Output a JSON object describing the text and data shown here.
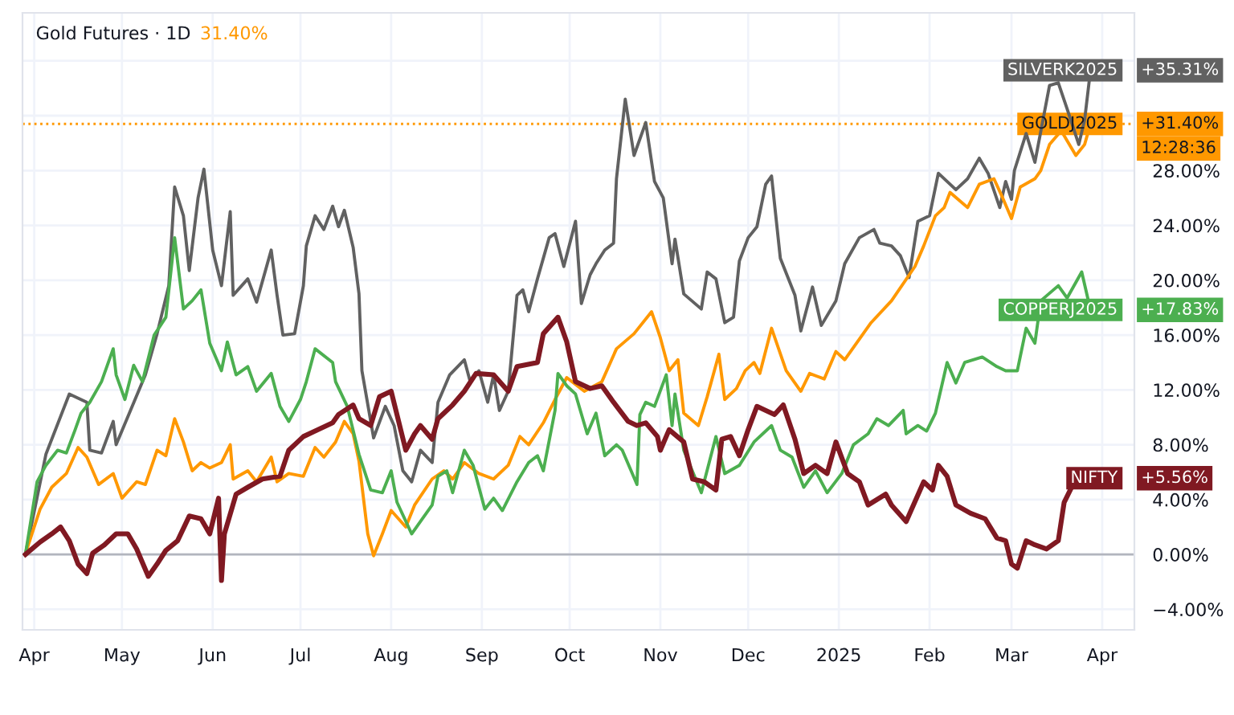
{
  "chart_data": {
    "type": "line",
    "title": "Gold Futures · 1D",
    "subtitle": "31.40%",
    "xlim": [
      "2024-03-28",
      "2025-04-12"
    ],
    "xticks": [
      {
        "value": "2024-04-01",
        "label": "Apr"
      },
      {
        "value": "2024-05-01",
        "label": "May"
      },
      {
        "value": "2024-06-01",
        "label": "Jun"
      },
      {
        "value": "2024-07-01",
        "label": "Jul"
      },
      {
        "value": "2024-08-01",
        "label": "Aug"
      },
      {
        "value": "2024-09-01",
        "label": "Sep"
      },
      {
        "value": "2024-10-01",
        "label": "Oct"
      },
      {
        "value": "2024-11-01",
        "label": "Nov"
      },
      {
        "value": "2024-12-01",
        "label": "Dec"
      },
      {
        "value": "2025-01-01",
        "label": "2025"
      },
      {
        "value": "2025-02-01",
        "label": "Feb"
      },
      {
        "value": "2025-03-01",
        "label": "Mar"
      },
      {
        "value": "2025-04-01",
        "label": "Apr"
      }
    ],
    "ylim": [
      -5.5,
      39.5
    ],
    "yticks": [
      {
        "value": -4,
        "label": "−4.00%"
      },
      {
        "value": 0,
        "label": "0.00%"
      },
      {
        "value": 4,
        "label": "4.00%"
      },
      {
        "value": 8,
        "label": "8.00%"
      },
      {
        "value": 12,
        "label": "12.00%"
      },
      {
        "value": 16,
        "label": "16.00%"
      },
      {
        "value": 20,
        "label": "20.00%"
      },
      {
        "value": 24,
        "label": "24.00%"
      },
      {
        "value": 28,
        "label": "28.00%"
      },
      {
        "value": 32,
        "label": null
      },
      {
        "value": 36,
        "label": null
      }
    ],
    "grid": true,
    "legend": "right",
    "marker": "none",
    "line_style": "solid",
    "ref_lines": [
      {
        "axis": "y",
        "value": 0,
        "color": "#b2b5be",
        "line_style": "solid"
      },
      {
        "axis": "y",
        "value": 31.4,
        "color": "#ff9800",
        "line_style": "dotted"
      }
    ],
    "series": [
      {
        "name": "SILVERK2025",
        "color": "#616161",
        "x": [
          "2024-03-29",
          "2024-04-05",
          "2024-04-13",
          "2024-04-19",
          "2024-04-20",
          "2024-04-24",
          "2024-04-28",
          "2024-04-29",
          "2024-05-09",
          "2024-05-13",
          "2024-05-17",
          "2024-05-19",
          "2024-05-22",
          "2024-05-24",
          "2024-05-27",
          "2024-05-29",
          "2024-06-01",
          "2024-06-04",
          "2024-06-07",
          "2024-06-08",
          "2024-06-13",
          "2024-06-16",
          "2024-06-21",
          "2024-06-23",
          "2024-06-25",
          "2024-06-29",
          "2024-07-02",
          "2024-07-03",
          "2024-07-06",
          "2024-07-09",
          "2024-07-12",
          "2024-07-14",
          "2024-07-16",
          "2024-07-19",
          "2024-07-21",
          "2024-07-22",
          "2024-07-26",
          "2024-07-30",
          "2024-08-02",
          "2024-08-05",
          "2024-08-08",
          "2024-08-11",
          "2024-08-15",
          "2024-08-17",
          "2024-08-21",
          "2024-08-26",
          "2024-08-28",
          "2024-08-31",
          "2024-09-03",
          "2024-09-05",
          "2024-09-07",
          "2024-09-10",
          "2024-09-13",
          "2024-09-15",
          "2024-09-17",
          "2024-09-20",
          "2024-09-24",
          "2024-09-26",
          "2024-09-29",
          "2024-10-03",
          "2024-10-05",
          "2024-10-08",
          "2024-10-10",
          "2024-10-13",
          "2024-10-16",
          "2024-10-17",
          "2024-10-20",
          "2024-10-23",
          "2024-10-27",
          "2024-10-30",
          "2024-11-02",
          "2024-11-05",
          "2024-11-06",
          "2024-11-09",
          "2024-11-15",
          "2024-11-17",
          "2024-11-20",
          "2024-11-23",
          "2024-11-26",
          "2024-11-28",
          "2024-12-01",
          "2024-12-04",
          "2024-12-07",
          "2024-12-09",
          "2024-12-12",
          "2024-12-17",
          "2024-12-19",
          "2024-12-23",
          "2024-12-26",
          "2024-12-31",
          "2025-01-03",
          "2025-01-08",
          "2025-01-13",
          "2025-01-15",
          "2025-01-19",
          "2025-01-22",
          "2025-01-25",
          "2025-01-28",
          "2025-02-01",
          "2025-02-04",
          "2025-02-07",
          "2025-02-10",
          "2025-02-14",
          "2025-02-18",
          "2025-02-21",
          "2025-02-25",
          "2025-02-27",
          "2025-03-01",
          "2025-03-02",
          "2025-03-06",
          "2025-03-09",
          "2025-03-14",
          "2025-03-17",
          "2025-03-20",
          "2025-03-24",
          "2025-03-26",
          "2025-03-28"
        ],
        "values": [
          0,
          7.3,
          11.7,
          11.1,
          7.6,
          7.4,
          9.7,
          8,
          13.1,
          16.1,
          19.6,
          26.8,
          24.7,
          20.7,
          26,
          28.1,
          22.2,
          19.6,
          25,
          18.9,
          20.1,
          18.4,
          22.2,
          18.9,
          16,
          16.1,
          19.6,
          22.5,
          24.7,
          23.7,
          25.4,
          23.9,
          25.1,
          22.4,
          19,
          13.4,
          8.5,
          10.8,
          9.4,
          6.1,
          5.3,
          7.6,
          6.7,
          11.1,
          13.1,
          14.2,
          12.6,
          13.4,
          11.1,
          13.1,
          10.5,
          11.9,
          18.9,
          19.3,
          17.7,
          20.1,
          23.1,
          23.4,
          21,
          24.3,
          18.3,
          20.4,
          21.2,
          22.2,
          22.7,
          27.4,
          33.2,
          29.1,
          31.5,
          27.2,
          26,
          21.2,
          23,
          19,
          17.9,
          20.6,
          20.1,
          16.9,
          17.3,
          21.4,
          23.1,
          23.9,
          27,
          27.6,
          21.6,
          18.9,
          16.3,
          19.5,
          16.7,
          18.5,
          21.2,
          23.1,
          23.7,
          22.7,
          22.5,
          21.8,
          20.2,
          24.3,
          24.7,
          27.8,
          27.2,
          26.6,
          27.4,
          28.9,
          27.8,
          25.3,
          27.2,
          25.9,
          28,
          30.7,
          28.6,
          34.2,
          34.4,
          32.5,
          29.9,
          31.7,
          35.31
        ],
        "value_labels": [
          null,
          null,
          null,
          null,
          null,
          null,
          null,
          null,
          null,
          null,
          null,
          null,
          null,
          null,
          null,
          null,
          null,
          null,
          null,
          null,
          null,
          null,
          null,
          null,
          null,
          null,
          null,
          null,
          null,
          null,
          null,
          null,
          null,
          null,
          null,
          null,
          null,
          null,
          null,
          null,
          null,
          null,
          null,
          null,
          null,
          null,
          null,
          null,
          null,
          null,
          null,
          null,
          null,
          null,
          null,
          null,
          null,
          null,
          null,
          null,
          null,
          null,
          null,
          null,
          null,
          null,
          null,
          null,
          null,
          null,
          null,
          null,
          null,
          null,
          null,
          null,
          null,
          null,
          null,
          null,
          null,
          null,
          null,
          null,
          null,
          null,
          null,
          null,
          null,
          null,
          null,
          null,
          null,
          null,
          null,
          null,
          null,
          null,
          null,
          null,
          null,
          null,
          null,
          null,
          null,
          null,
          null,
          null,
          null,
          null,
          null,
          null,
          null,
          null,
          null,
          null,
          null
        ]
      },
      {
        "name": "GOLDJ2025",
        "color": "#ff9800",
        "x": [
          "2024-03-29",
          "2024-03-30",
          "2024-04-03",
          "2024-04-07",
          "2024-04-12",
          "2024-04-16",
          "2024-04-19",
          "2024-04-23",
          "2024-04-28",
          "2024-05-01",
          "2024-05-06",
          "2024-05-09",
          "2024-05-13",
          "2024-05-16",
          "2024-05-19",
          "2024-05-22",
          "2024-05-25",
          "2024-05-28",
          "2024-05-31",
          "2024-06-04",
          "2024-06-07",
          "2024-06-08",
          "2024-06-13",
          "2024-06-16",
          "2024-06-21",
          "2024-06-23",
          "2024-06-27",
          "2024-07-02",
          "2024-07-06",
          "2024-07-09",
          "2024-07-13",
          "2024-07-16",
          "2024-07-19",
          "2024-07-21",
          "2024-07-24",
          "2024-07-26",
          "2024-07-29",
          "2024-08-01",
          "2024-08-06",
          "2024-08-09",
          "2024-08-15",
          "2024-08-19",
          "2024-08-22",
          "2024-08-26",
          "2024-08-31",
          "2024-09-05",
          "2024-09-10",
          "2024-09-14",
          "2024-09-17",
          "2024-09-22",
          "2024-09-26",
          "2024-09-30",
          "2024-10-06",
          "2024-10-12",
          "2024-10-17",
          "2024-10-23",
          "2024-10-29",
          "2024-11-01",
          "2024-11-04",
          "2024-11-07",
          "2024-11-09",
          "2024-11-14",
          "2024-11-17",
          "2024-11-21",
          "2024-11-23",
          "2024-11-27",
          "2024-11-30",
          "2024-12-03",
          "2024-12-05",
          "2024-12-09",
          "2024-12-14",
          "2024-12-19",
          "2024-12-22",
          "2024-12-27",
          "2024-12-31",
          "2025-01-03",
          "2025-01-12",
          "2025-01-19",
          "2025-01-27",
          "2025-01-30",
          "2025-02-03",
          "2025-02-06",
          "2025-02-08",
          "2025-02-14",
          "2025-02-18",
          "2025-02-23",
          "2025-02-26",
          "2025-03-01",
          "2025-03-04",
          "2025-03-09",
          "2025-03-11",
          "2025-03-14",
          "2025-03-18",
          "2025-03-23",
          "2025-03-26",
          "2025-03-28"
        ],
        "values": [
          0,
          0.7,
          3.3,
          4.9,
          5.9,
          7.8,
          7.1,
          5.1,
          5.9,
          4.1,
          5.3,
          5.1,
          7.6,
          7.2,
          9.9,
          8.2,
          6.1,
          6.7,
          6.3,
          6.7,
          8,
          5.5,
          6.1,
          5.3,
          7.1,
          5.3,
          5.9,
          5.7,
          7.8,
          7.1,
          8.2,
          9.7,
          8.8,
          6.8,
          1.5,
          -0.1,
          1.5,
          3.2,
          2,
          3.6,
          5.5,
          6.1,
          5.5,
          6.7,
          5.9,
          5.5,
          6.5,
          8.6,
          8,
          9.6,
          11.3,
          12.9,
          11.9,
          12.6,
          15,
          16.1,
          17.7,
          15.8,
          13.4,
          14.2,
          10.3,
          9.4,
          11.5,
          14.6,
          11.3,
          12.1,
          13.4,
          14,
          13.2,
          16.5,
          13.4,
          11.9,
          13.2,
          12.8,
          14.8,
          14.2,
          16.9,
          18.5,
          21,
          22.5,
          24.7,
          25.3,
          26.4,
          25.3,
          27,
          27.4,
          26,
          24.5,
          26.8,
          27.4,
          28,
          29.9,
          30.9,
          29.1,
          29.9,
          31.4
        ],
        "value_labels": [
          null,
          null,
          null,
          null,
          null,
          null,
          null,
          null,
          null,
          null,
          null,
          null,
          null,
          null,
          null,
          null,
          null,
          null,
          null,
          null,
          null,
          null,
          null,
          null,
          null,
          null,
          null,
          null,
          null,
          null,
          null,
          null,
          null,
          null,
          null,
          null,
          null,
          null,
          null,
          null,
          null,
          null,
          null,
          null,
          null,
          null,
          null,
          null,
          null,
          null,
          null,
          null,
          null,
          null,
          null,
          null,
          null,
          null,
          null,
          null,
          null,
          null,
          null,
          null,
          null,
          null,
          null,
          null,
          null,
          null,
          null,
          null,
          null,
          null,
          null,
          null,
          null,
          null,
          null,
          null,
          null,
          null,
          null,
          null,
          null,
          null,
          null,
          null,
          null,
          null,
          null,
          null,
          null,
          null,
          null,
          null
        ]
      },
      {
        "name": "COPPERJ2025",
        "color": "#4caf50",
        "x": [
          "2024-03-29",
          "2024-04-02",
          "2024-04-05",
          "2024-04-09",
          "2024-04-12",
          "2024-04-15",
          "2024-04-17",
          "2024-04-20",
          "2024-04-24",
          "2024-04-28",
          "2024-04-29",
          "2024-05-02",
          "2024-05-05",
          "2024-05-08",
          "2024-05-12",
          "2024-05-16",
          "2024-05-19",
          "2024-05-22",
          "2024-05-25",
          "2024-05-28",
          "2024-05-31",
          "2024-06-04",
          "2024-06-06",
          "2024-06-09",
          "2024-06-13",
          "2024-06-16",
          "2024-06-21",
          "2024-06-24",
          "2024-06-27",
          "2024-07-01",
          "2024-07-03",
          "2024-07-06",
          "2024-07-12",
          "2024-07-13",
          "2024-07-17",
          "2024-07-21",
          "2024-07-25",
          "2024-07-29",
          "2024-08-01",
          "2024-08-03",
          "2024-08-08",
          "2024-08-11",
          "2024-08-15",
          "2024-08-17",
          "2024-08-20",
          "2024-08-22",
          "2024-08-26",
          "2024-08-29",
          "2024-09-02",
          "2024-09-05",
          "2024-09-08",
          "2024-09-13",
          "2024-09-17",
          "2024-09-20",
          "2024-09-22",
          "2024-09-26",
          "2024-09-27",
          "2024-09-30",
          "2024-10-03",
          "2024-10-07",
          "2024-10-10",
          "2024-10-13",
          "2024-10-17",
          "2024-10-19",
          "2024-10-24",
          "2024-10-25",
          "2024-10-27",
          "2024-10-30",
          "2024-11-03",
          "2024-11-05",
          "2024-11-06",
          "2024-11-09",
          "2024-11-15",
          "2024-11-20",
          "2024-11-23",
          "2024-11-28",
          "2024-12-03",
          "2024-12-09",
          "2024-12-12",
          "2024-12-16",
          "2024-12-20",
          "2024-12-24",
          "2024-12-28",
          "2025-01-02",
          "2025-01-06",
          "2025-01-11",
          "2025-01-14",
          "2025-01-18",
          "2025-01-23",
          "2025-01-24",
          "2025-01-28",
          "2025-01-31",
          "2025-02-03",
          "2025-02-07",
          "2025-02-10",
          "2025-02-13",
          "2025-02-19",
          "2025-02-24",
          "2025-02-27",
          "2025-03-03",
          "2025-03-06",
          "2025-03-09",
          "2025-03-11",
          "2025-03-17",
          "2025-03-20",
          "2025-03-25",
          "2025-03-28"
        ],
        "values": [
          0,
          5.3,
          6.5,
          7.6,
          7.4,
          9.1,
          10.3,
          11.1,
          12.6,
          15,
          13.1,
          11.3,
          13.8,
          12.6,
          16,
          17.3,
          23.1,
          17.9,
          18.5,
          19.3,
          15.4,
          13.4,
          15.5,
          13.1,
          13.7,
          11.9,
          13.2,
          10.8,
          9.7,
          11.3,
          12.6,
          15,
          14,
          12.6,
          10.8,
          7.3,
          4.7,
          4.5,
          6.1,
          3.8,
          1.5,
          2.4,
          3.6,
          5.7,
          6.1,
          4.5,
          7.6,
          6.5,
          3.3,
          4.1,
          3.2,
          5.3,
          6.7,
          7.2,
          6.1,
          10.5,
          13.2,
          12.3,
          11.7,
          8.8,
          10.3,
          7.2,
          8,
          7.6,
          5.1,
          10.2,
          11.1,
          10.8,
          13.1,
          9.4,
          11.7,
          7.6,
          4.5,
          8.6,
          5.9,
          6.5,
          8.2,
          9.4,
          7.6,
          7.1,
          4.9,
          6.1,
          4.5,
          5.9,
          8,
          8.8,
          9.9,
          9.4,
          10.5,
          8.8,
          9.4,
          9,
          10.3,
          14,
          12.5,
          14,
          14.4,
          13.7,
          13.4,
          13.4,
          16.5,
          15.4,
          18.5,
          19.6,
          18.7,
          20.6,
          17.83
        ],
        "value_labels": [
          null,
          null,
          null,
          null,
          null,
          null,
          null,
          null,
          null,
          null,
          null,
          null,
          null,
          null,
          null,
          null,
          null,
          null,
          null,
          null,
          null,
          null,
          null,
          null,
          null,
          null,
          null,
          null,
          null,
          null,
          null,
          null,
          null,
          null,
          null,
          null,
          null,
          null,
          null,
          null,
          null,
          null,
          null,
          null,
          null,
          null,
          null,
          null,
          null,
          null,
          null,
          null,
          null,
          null,
          null,
          null,
          null,
          null,
          null,
          null,
          null,
          null,
          null,
          null,
          null,
          null,
          null,
          null,
          null,
          null,
          null,
          null,
          null,
          null,
          null,
          null,
          null,
          null,
          null,
          null,
          null,
          null,
          null,
          null,
          null,
          null,
          null,
          null,
          null,
          null,
          null,
          null,
          null,
          null,
          null,
          null,
          null,
          null,
          null,
          null,
          null,
          null,
          null,
          null,
          null,
          null,
          null
        ]
      },
      {
        "name": "NIFTY",
        "color": "#801922",
        "x": [
          "2024-03-29",
          "2024-04-03",
          "2024-04-07",
          "2024-04-10",
          "2024-04-13",
          "2024-04-16",
          "2024-04-19",
          "2024-04-21",
          "2024-04-25",
          "2024-04-29",
          "2024-05-03",
          "2024-05-06",
          "2024-05-10",
          "2024-05-13",
          "2024-05-16",
          "2024-05-20",
          "2024-05-24",
          "2024-05-28",
          "2024-05-31",
          "2024-06-03",
          "2024-06-04",
          "2024-06-05",
          "2024-06-09",
          "2024-06-13",
          "2024-06-18",
          "2024-06-24",
          "2024-06-27",
          "2024-07-02",
          "2024-07-06",
          "2024-07-12",
          "2024-07-14",
          "2024-07-19",
          "2024-07-21",
          "2024-07-25",
          "2024-07-28",
          "2024-08-01",
          "2024-08-06",
          "2024-08-09",
          "2024-08-11",
          "2024-08-15",
          "2024-08-17",
          "2024-08-22",
          "2024-08-26",
          "2024-08-30",
          "2024-09-05",
          "2024-09-10",
          "2024-09-13",
          "2024-09-20",
          "2024-09-22",
          "2024-09-27",
          "2024-09-30",
          "2024-10-03",
          "2024-10-08",
          "2024-10-12",
          "2024-10-16",
          "2024-10-21",
          "2024-10-24",
          "2024-10-27",
          "2024-10-31",
          "2024-11-01",
          "2024-11-04",
          "2024-11-09",
          "2024-11-12",
          "2024-11-16",
          "2024-11-20",
          "2024-11-22",
          "2024-11-25",
          "2024-11-28",
          "2024-12-01",
          "2024-12-04",
          "2024-12-10",
          "2024-12-13",
          "2024-12-17",
          "2024-12-20",
          "2024-12-24",
          "2024-12-28",
          "2024-12-31",
          "2025-01-04",
          "2025-01-08",
          "2025-01-11",
          "2025-01-17",
          "2025-01-19",
          "2025-01-24",
          "2025-01-30",
          "2025-02-02",
          "2025-02-04",
          "2025-02-07",
          "2025-02-10",
          "2025-02-15",
          "2025-02-20",
          "2025-02-24",
          "2025-02-27",
          "2025-03-01",
          "2025-03-03",
          "2025-03-06",
          "2025-03-09",
          "2025-03-13",
          "2025-03-17",
          "2025-03-19",
          "2025-03-22",
          "2025-03-25",
          "2025-03-28"
        ],
        "values": [
          0,
          0.9,
          1.5,
          2,
          1,
          -0.7,
          -1.4,
          0.1,
          0.7,
          1.5,
          1.5,
          0.4,
          -1.6,
          -0.7,
          0.3,
          1,
          2.8,
          2.6,
          1.5,
          4.1,
          -1.9,
          1.5,
          4.4,
          4.9,
          5.5,
          5.7,
          7.6,
          8.6,
          9,
          9.6,
          10.2,
          10.9,
          9.9,
          9.4,
          11.5,
          11.9,
          7.6,
          8.8,
          9.4,
          8.4,
          9.9,
          10.9,
          11.9,
          13.2,
          13.1,
          11.9,
          13.7,
          14,
          16.1,
          17.3,
          15.5,
          12.6,
          12.1,
          12.3,
          11.1,
          9.7,
          9.4,
          9.6,
          8.6,
          7.6,
          9.1,
          8.2,
          5.5,
          5.3,
          4.7,
          8.4,
          8.6,
          7.2,
          9.1,
          10.8,
          10.2,
          10.9,
          8.4,
          5.9,
          6.5,
          5.9,
          8.2,
          5.9,
          5.3,
          3.6,
          4.4,
          3.6,
          2.4,
          5.3,
          4.7,
          6.5,
          5.7,
          3.6,
          3,
          2.6,
          1.2,
          1,
          -0.7,
          -1,
          1,
          0.7,
          0.4,
          1,
          3.8,
          5.1,
          5.9,
          5.56
        ],
        "value_labels": [
          null,
          null,
          null,
          null,
          null,
          null,
          null,
          null,
          null,
          null,
          null,
          null,
          null,
          null,
          null,
          null,
          null,
          null,
          null,
          null,
          null,
          null,
          null,
          null,
          null,
          null,
          null,
          null,
          null,
          null,
          null,
          null,
          null,
          null,
          null,
          null,
          null,
          null,
          null,
          null,
          null,
          null,
          null,
          null,
          null,
          null,
          null,
          null,
          null,
          null,
          null,
          null,
          null,
          null,
          null,
          null,
          null,
          null,
          null,
          null,
          null,
          null,
          null,
          null,
          null,
          null,
          null,
          null,
          null,
          null,
          null,
          null,
          null,
          null,
          null,
          null,
          null,
          null,
          null,
          null,
          null,
          null,
          null,
          null,
          null,
          null,
          null,
          null,
          null,
          null,
          null,
          null,
          null,
          null,
          null,
          null,
          null,
          null,
          null,
          null,
          null,
          null
        ]
      }
    ],
    "annotations": [
      "+35.31%",
      "+31.40%",
      "+17.83%",
      "+5.56%",
      "12:28:36"
    ]
  }
}
